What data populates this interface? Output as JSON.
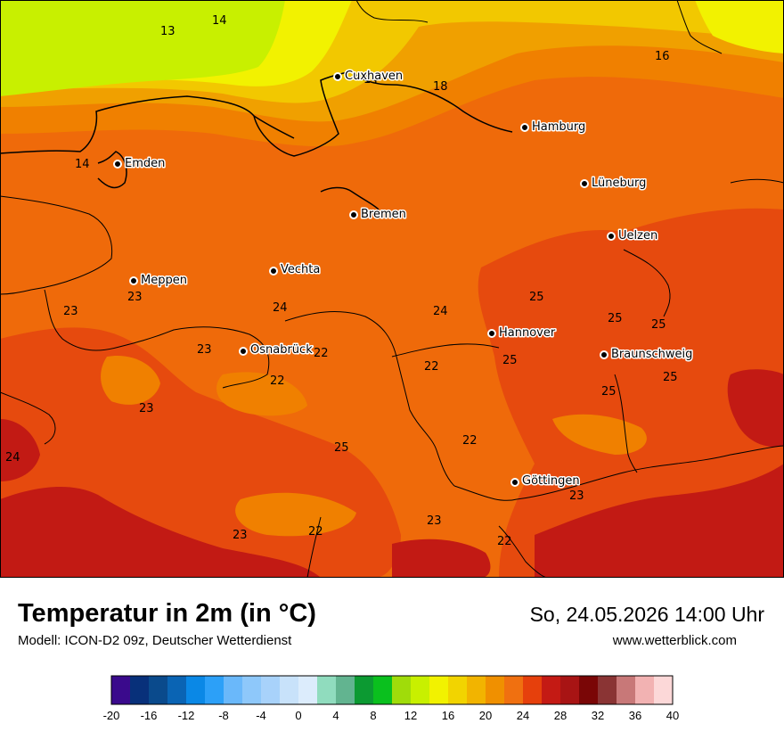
{
  "map": {
    "cities": [
      {
        "name": "Cuxhaven"
      },
      {
        "name": "Hamburg"
      },
      {
        "name": "Emden"
      },
      {
        "name": "Lüneburg"
      },
      {
        "name": "Bremen"
      },
      {
        "name": "Uelzen"
      },
      {
        "name": "Vechta"
      },
      {
        "name": "Meppen"
      },
      {
        "name": "Hannover"
      },
      {
        "name": "Osnabrück"
      },
      {
        "name": "Braunschweig"
      },
      {
        "name": "Göttingen"
      }
    ],
    "value_labels": [
      "13",
      "14",
      "14",
      "18",
      "16",
      "14",
      "23",
      "23",
      "24",
      "24",
      "25",
      "25",
      "25",
      "23",
      "22",
      "25",
      "22",
      "25",
      "23",
      "25",
      "22",
      "24",
      "22",
      "23",
      "23",
      "22",
      "22",
      "23"
    ],
    "colors": {
      "c12": "#c8f000",
      "c16": "#f2f200",
      "c20": "#f2c800",
      "c22": "#f0a000",
      "c23": "#f08000",
      "c24": "#ef6a0a",
      "c25": "#e64a0e",
      "c28": "#c21a14"
    }
  },
  "footer": {
    "title": "Temperatur in 2m (in °C)",
    "model": "Modell: ICON-D2 09z, Deutscher Wetterdienst",
    "datetime": "So, 24.05.2026 14:00 Uhr",
    "website": "www.wetterblick.com"
  },
  "legend": {
    "colors": [
      "#3a0a8c",
      "#08307a",
      "#0a4a8c",
      "#0a64b4",
      "#0a88e6",
      "#2ca0f8",
      "#6ab8fa",
      "#8ec8fa",
      "#a8d2fa",
      "#c8e2fa",
      "#dcecfc",
      "#90dcbe",
      "#62b490",
      "#0c9a32",
      "#0ac01e",
      "#a0dc0a",
      "#c8f000",
      "#f2f200",
      "#f2d400",
      "#f2b400",
      "#f09000",
      "#f07010",
      "#e6400c",
      "#c41a14",
      "#a81414",
      "#7a0606",
      "#8a3434",
      "#c87878",
      "#f2b2b2",
      "#fcd8d8"
    ],
    "ticks": [
      "-20",
      "-16",
      "-12",
      "-8",
      "-4",
      "0",
      "4",
      "8",
      "12",
      "16",
      "20",
      "24",
      "28",
      "32",
      "36",
      "40"
    ]
  }
}
